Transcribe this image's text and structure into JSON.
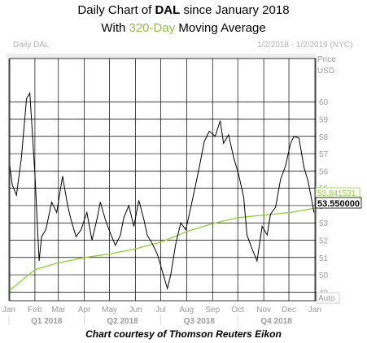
{
  "header": {
    "title_prefix": "Daily Chart of ",
    "ticker": "DAL",
    "title_suffix": " since January 2018",
    "subtitle_prefix": "With ",
    "subtitle_highlight": "320-Day",
    "subtitle_suffix": " Moving Average",
    "panel_label": "Daily DAL",
    "date_range": "1/2/2018 - 1/2/2019 (NYC)"
  },
  "footer": {
    "credit": "Chart courtesy of Thomson Reuters Eikon"
  },
  "axis_controls": {
    "price_label": "Price",
    "currency_label": "USD",
    "auto_button": "Auto"
  },
  "colors": {
    "price": "#000000",
    "moving_average": "#8fd12a",
    "accent_text": "#8fbf3f",
    "grid": "#000000",
    "axis_text": "#9a9a9a"
  },
  "chart_data": {
    "type": "line",
    "title": "Daily Chart of DAL since January 2018",
    "subtitle": "With 320-Day Moving Average",
    "ylim": [
      48.5,
      62.5
    ],
    "y_ticks": [
      49,
      50,
      51,
      52,
      53,
      54,
      55,
      56,
      57,
      58,
      59,
      60
    ],
    "x_month_labels": [
      "Jan",
      "Feb",
      "Mar",
      "Apr",
      "May",
      "Jun",
      "Jul",
      "Aug",
      "Sep",
      "Oct",
      "Nov",
      "Dec",
      "Jan"
    ],
    "x_quarter_labels": [
      "Q1 2018",
      "Q2 2018",
      "Q3 2018",
      "Q4 2018"
    ],
    "price_labels": {
      "ma_last": "53.841531",
      "close_last": "53.550000"
    },
    "series": [
      {
        "name": "Daily DAL",
        "dates": [
          "2018-01-02",
          "2018-01-05",
          "2018-01-10",
          "2018-01-16",
          "2018-01-22",
          "2018-01-26",
          "2018-02-01",
          "2018-02-06",
          "2018-02-09",
          "2018-02-14",
          "2018-02-21",
          "2018-02-27",
          "2018-03-06",
          "2018-03-12",
          "2018-03-16",
          "2018-03-22",
          "2018-03-28",
          "2018-04-04",
          "2018-04-10",
          "2018-04-16",
          "2018-04-20",
          "2018-04-26",
          "2018-05-02",
          "2018-05-08",
          "2018-05-14",
          "2018-05-18",
          "2018-05-24",
          "2018-05-30",
          "2018-06-05",
          "2018-06-11",
          "2018-06-15",
          "2018-06-21",
          "2018-06-27",
          "2018-07-03",
          "2018-07-09",
          "2018-07-13",
          "2018-07-19",
          "2018-07-25",
          "2018-07-31",
          "2018-08-06",
          "2018-08-10",
          "2018-08-16",
          "2018-08-22",
          "2018-08-28",
          "2018-09-04",
          "2018-09-10",
          "2018-09-14",
          "2018-09-20",
          "2018-09-26",
          "2018-10-02",
          "2018-10-08",
          "2018-10-12",
          "2018-10-18",
          "2018-10-24",
          "2018-10-30",
          "2018-11-05",
          "2018-11-09",
          "2018-11-15",
          "2018-11-21",
          "2018-11-27",
          "2018-12-03",
          "2018-12-07",
          "2018-12-13",
          "2018-12-19",
          "2018-12-24",
          "2018-12-31"
        ],
        "values": [
          56.3,
          55.2,
          54.6,
          56.8,
          60.2,
          60.5,
          55.8,
          50.8,
          52.2,
          52.6,
          54.2,
          53.6,
          55.7,
          54.0,
          53.2,
          52.2,
          52.6,
          53.6,
          52.0,
          53.2,
          54.2,
          53.2,
          52.4,
          51.7,
          52.3,
          53.3,
          54.0,
          52.8,
          54.3,
          53.2,
          52.3,
          51.8,
          51.2,
          50.2,
          49.2,
          50.0,
          51.8,
          53.0,
          52.6,
          53.9,
          54.8,
          56.2,
          57.7,
          58.3,
          58.0,
          58.9,
          57.6,
          58.1,
          56.8,
          55.8,
          54.5,
          52.3,
          51.5,
          50.8,
          52.8,
          52.3,
          53.5,
          53.9,
          55.5,
          56.3,
          57.6,
          58.0,
          57.9,
          56.2,
          55.4,
          53.6
        ]
      },
      {
        "name": "320-Day Moving Average",
        "dates": [
          "2018-01-02",
          "2018-02-01",
          "2018-03-01",
          "2018-04-02",
          "2018-05-01",
          "2018-06-01",
          "2018-07-02",
          "2018-08-01",
          "2018-09-04",
          "2018-10-01",
          "2018-11-01",
          "2018-12-03",
          "2018-12-31"
        ],
        "values": [
          49.1,
          50.3,
          50.7,
          51.0,
          51.2,
          51.5,
          51.9,
          52.5,
          53.0,
          53.3,
          53.45,
          53.6,
          53.84
        ]
      }
    ]
  }
}
